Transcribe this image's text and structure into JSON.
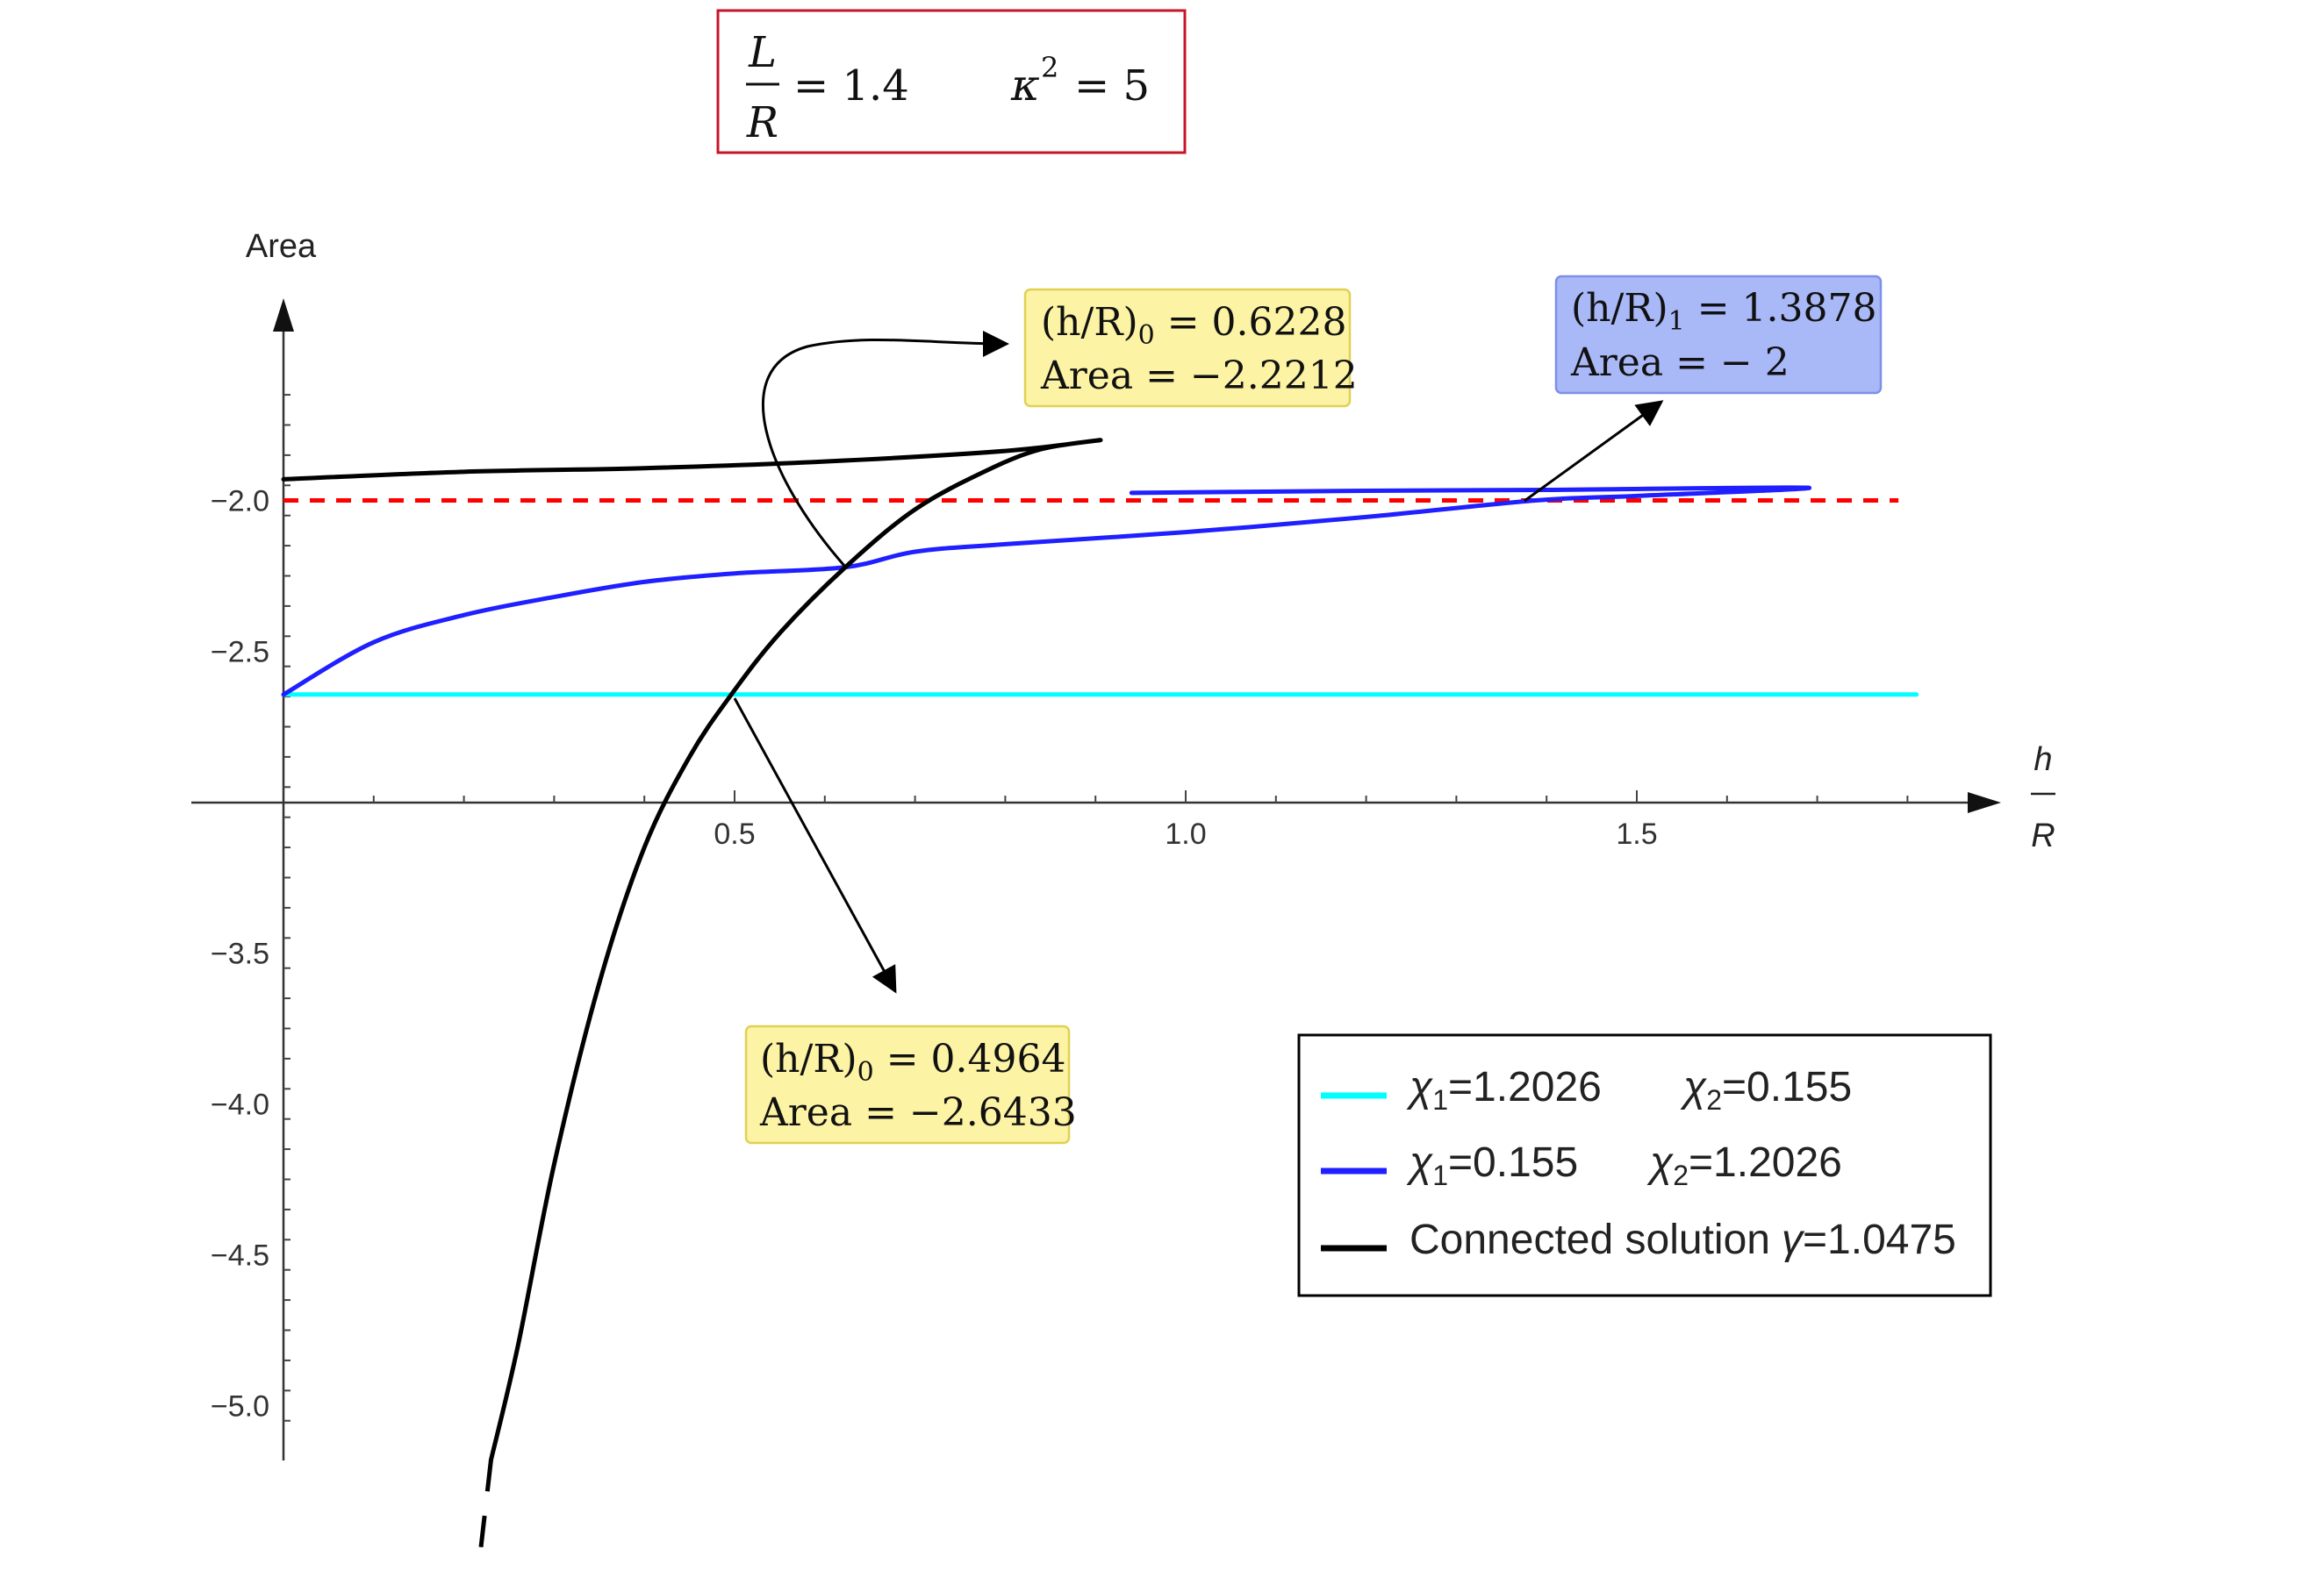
{
  "params": {
    "lr_num": "L",
    "lr_den": "R",
    "lr_value": "= 1.4",
    "kappa_symbol": "κ",
    "kappa_exp": "2",
    "kappa_value": "= 5"
  },
  "annotations": {
    "upper_yellow": {
      "line1_pre": "(h/R)",
      "line1_sub": "0",
      "line1_post": " = 0.6228",
      "line2": "Area = −2.2212",
      "color": "#fcf3a4"
    },
    "blue_box": {
      "line1_pre": "(h/R)",
      "line1_sub": "1",
      "line1_post": " = 1.3878",
      "line2": "Area =  − 2",
      "color": "#a9b8f7"
    },
    "lower_yellow": {
      "line1_pre": "(h/R)",
      "line1_sub": "0",
      "line1_post": " = 0.4964",
      "line2": "Area = −2.6433",
      "color": "#fcf3a4"
    }
  },
  "legend": {
    "cyan": {
      "a_sym": "χ",
      "a_sub": "1",
      "a_val": "=1.2026",
      "b_sym": "χ",
      "b_sub": "2",
      "b_val": "=0.155"
    },
    "blue": {
      "a_sym": "χ",
      "a_sub": "1",
      "a_val": "=0.155",
      "b_sym": "χ",
      "b_sub": "2",
      "b_val": "=1.2026"
    },
    "black": {
      "text": "Connected solution",
      "g_sym": "γ",
      "g_val": "=1.0475"
    }
  },
  "chart_data": {
    "type": "line",
    "ylabel": "Area",
    "xlabel_num": "h",
    "xlabel_den": "R",
    "x_ticks": [
      "0.5",
      "1.0",
      "1.5"
    ],
    "y_ticks": [
      "−2.0",
      "−2.5",
      "−3.5",
      "−4.0",
      "−4.5",
      "−5.0"
    ],
    "x_tick_values": [
      0.5,
      1.0,
      1.5
    ],
    "y_tick_values": [
      -2.0,
      -2.5,
      -3.5,
      -4.0,
      -4.5,
      -5.0
    ],
    "x_axis_crossing_y": -3.0,
    "xlim": [
      -0.1,
      1.88
    ],
    "ylim": [
      -5.2,
      -1.3
    ],
    "colors": {
      "cyan": "#00ffff",
      "blue": "#1f1fff",
      "black": "#000000",
      "dashed": "#ff0000"
    },
    "reference_line": {
      "y": -2.0,
      "x_range": [
        0,
        1.79
      ],
      "style": "dashed",
      "color": "#ff0000"
    },
    "series": [
      {
        "key": "cyan",
        "color": "#00ffff",
        "points": [
          [
            0,
            -2.6433
          ],
          [
            1.81,
            -2.6433
          ]
        ]
      },
      {
        "key": "blue",
        "color": "#1f1fff",
        "points": [
          [
            0,
            -2.6433
          ],
          [
            0.1,
            -2.47
          ],
          [
            0.2,
            -2.38
          ],
          [
            0.3,
            -2.32
          ],
          [
            0.4,
            -2.27
          ],
          [
            0.5,
            -2.242
          ],
          [
            0.6228,
            -2.2212
          ],
          [
            0.7,
            -2.17
          ],
          [
            0.8,
            -2.145
          ],
          [
            1.0,
            -2.105
          ],
          [
            1.2,
            -2.055
          ],
          [
            1.3878,
            -2.0
          ],
          [
            1.5,
            -1.985
          ],
          [
            1.69,
            -1.958
          ],
          [
            1.4,
            -1.965
          ],
          [
            1.2,
            -1.968
          ],
          [
            0.94,
            -1.975
          ]
        ]
      },
      {
        "key": "black",
        "color": "#000000",
        "points": [
          [
            0.23,
            -5.18
          ],
          [
            0.26,
            -4.8
          ],
          [
            0.3,
            -4.2
          ],
          [
            0.35,
            -3.6
          ],
          [
            0.4,
            -3.15
          ],
          [
            0.45,
            -2.85
          ],
          [
            0.4964,
            -2.6433
          ],
          [
            0.55,
            -2.44
          ],
          [
            0.6228,
            -2.2212
          ],
          [
            0.7,
            -2.03
          ],
          [
            0.78,
            -1.9
          ],
          [
            0.84,
            -1.83
          ],
          [
            0.905,
            -1.8
          ],
          [
            0.8,
            -1.836
          ],
          [
            0.6,
            -1.871
          ],
          [
            0.4,
            -1.893
          ],
          [
            0.2,
            -1.905
          ],
          [
            0,
            -1.93
          ]
        ]
      },
      {
        "key": "black-dashed",
        "color": "#000000",
        "dashed": true,
        "points": [
          [
            0.23,
            -5.18
          ],
          [
            0.21,
            -5.7
          ]
        ]
      }
    ]
  }
}
